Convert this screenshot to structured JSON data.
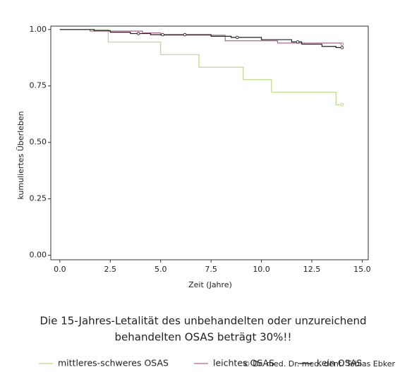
{
  "chart_data": {
    "type": "step",
    "xlabel": "Zeit (Jahre)",
    "ylabel": "kumuliertes Überleben",
    "xlim": [
      -0.45,
      15.3
    ],
    "ylim": [
      -0.02,
      1.015
    ],
    "xticks": [
      {
        "value": 0,
        "label": "0.0"
      },
      {
        "value": 2.5,
        "label": "2.5"
      },
      {
        "value": 5,
        "label": "5.0"
      },
      {
        "value": 7.5,
        "label": "7.5"
      },
      {
        "value": 10,
        "label": "10.0"
      },
      {
        "value": 12.5,
        "label": "12.5"
      },
      {
        "value": 15,
        "label": "15.0"
      }
    ],
    "yticks": [
      {
        "value": 0,
        "label": "0.00"
      },
      {
        "value": 0.25,
        "label": "0.25"
      },
      {
        "value": 0.5,
        "label": "0.50"
      },
      {
        "value": 0.75,
        "label": "0.75"
      },
      {
        "value": 1,
        "label": "1.00"
      }
    ],
    "series": [
      {
        "name": "mittleres-schweres OSAS",
        "color": "#b8d982",
        "x": [
          0,
          2.4,
          5.0,
          6.9,
          9.1,
          10.5,
          13.7,
          14.0
        ],
        "values": [
          1.0,
          0.944,
          0.889,
          0.833,
          0.778,
          0.722,
          0.667,
          0.667
        ],
        "censored": [
          14.0
        ]
      },
      {
        "name": "leichtes OSAS",
        "color": "#b2648f",
        "x": [
          0,
          1.5,
          4.1,
          5.0,
          8.2,
          10.8,
          14.0
        ],
        "values": [
          1.0,
          0.993,
          0.985,
          0.975,
          0.95,
          0.94,
          0.935
        ],
        "censored": [
          14.0
        ]
      },
      {
        "name": "kein OSAS",
        "color": "#222222",
        "x": [
          0,
          1.7,
          2.5,
          3.5,
          4.5,
          7.5,
          8.5,
          10.0,
          11.5,
          12.0,
          13.0,
          13.7,
          14.0
        ],
        "values": [
          1.0,
          0.995,
          0.988,
          0.982,
          0.977,
          0.97,
          0.965,
          0.955,
          0.945,
          0.935,
          0.925,
          0.92,
          0.92
        ],
        "censored": [
          3.9,
          5.1,
          6.2,
          8.8,
          11.8,
          14.0
        ]
      }
    ],
    "caption": [
      "Die 15-Jahres-Letalität des unbehandelten oder unzureichend",
      "behandelten OSAS beträgt 30%!!"
    ],
    "copyright": "© Dr. med. Dr. med. dent. Tobias Ebker"
  }
}
